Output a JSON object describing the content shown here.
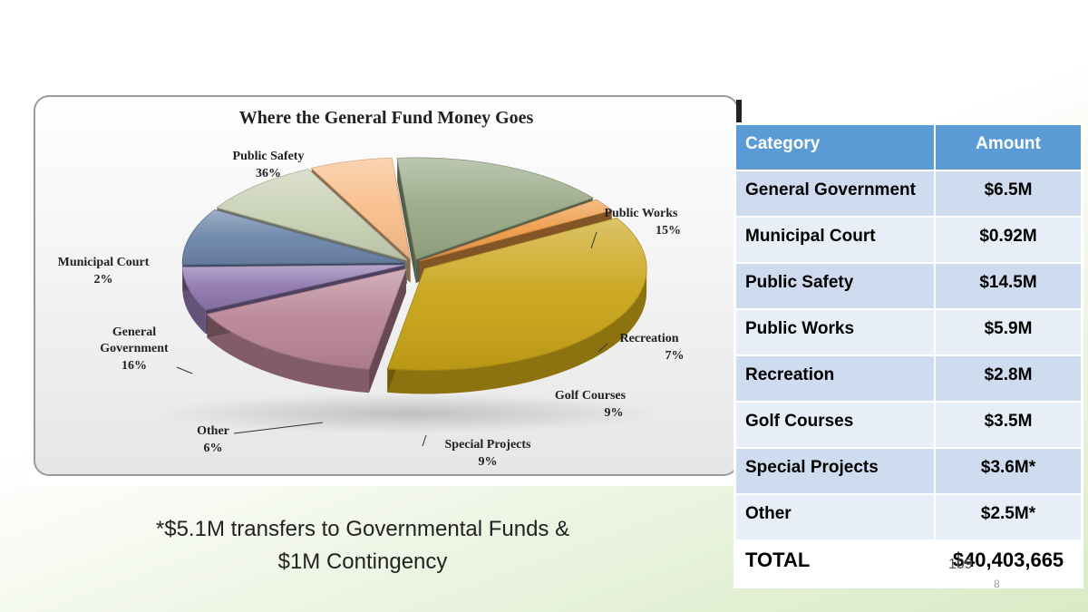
{
  "chart_data": {
    "type": "pie",
    "title": "Where the General Fund Money Goes",
    "slices": [
      {
        "name": "Public Safety",
        "label": "36%",
        "value": 36,
        "color": "#c9a416"
      },
      {
        "name": "Public Works",
        "label": "15%",
        "value": 15,
        "color": "#b98595"
      },
      {
        "name": "Recreation",
        "label": "7%",
        "value": 7,
        "color": "#8e76ad"
      },
      {
        "name": "Golf Courses",
        "label": "9%",
        "value": 9,
        "color": "#6b84a8"
      },
      {
        "name": "Special Projects",
        "label": "9%",
        "value": 9,
        "color": "#c8d0b4"
      },
      {
        "name": "Other",
        "label": "6%",
        "value": 6,
        "color": "#f9be8a"
      },
      {
        "name": "General Government",
        "label": "16%",
        "value": 16,
        "color": "#98a985"
      },
      {
        "name": "Municipal Court",
        "label": "2%",
        "value": 2,
        "color": "#ee9a45"
      }
    ]
  },
  "table": {
    "headers": [
      "Category",
      "Amount"
    ],
    "rows": [
      {
        "category": "General Government",
        "amount": "$6.5M"
      },
      {
        "category": "Municipal Court",
        "amount": "$0.92M"
      },
      {
        "category": "Public Safety",
        "amount": "$14.5M"
      },
      {
        "category": "Public Works",
        "amount": "$5.9M"
      },
      {
        "category": "Recreation",
        "amount": "$2.8M"
      },
      {
        "category": "Golf Courses",
        "amount": "$3.5M"
      },
      {
        "category": "Special Projects",
        "amount": "$3.6M*"
      },
      {
        "category": "Other",
        "amount": "$2.5M*"
      }
    ],
    "total": {
      "category": "TOTAL",
      "amount": "$40,403,665"
    }
  },
  "footnote": {
    "line1": "*$5.1M transfers to Governmental Funds &",
    "line2": "$1M Contingency"
  },
  "page_numbers": {
    "a": "109",
    "b": "8"
  }
}
